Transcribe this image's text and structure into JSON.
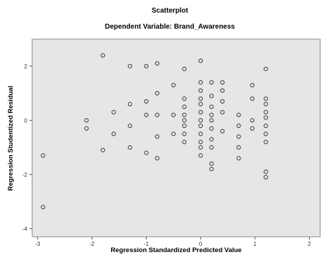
{
  "chart_data": {
    "type": "scatter",
    "title": "Scatterplot",
    "subtitle": "Dependent Variable: Brand_Awareness",
    "xlabel": "Regression Standardized Predicted Value",
    "ylabel": "Regression Studentized Residual",
    "xlim": [
      -3.1,
      2.2
    ],
    "ylim": [
      -4.3,
      3.0
    ],
    "xticks": [
      -3,
      -2,
      -1,
      0,
      1,
      2
    ],
    "yticks": [
      -4,
      -2,
      0,
      2
    ],
    "grid": false,
    "plot_background": "#e6e6e6",
    "marker_color": "#444444",
    "points": [
      {
        "x": -2.9,
        "y": -1.3
      },
      {
        "x": -2.9,
        "y": -3.2
      },
      {
        "x": -2.1,
        "y": 0.0
      },
      {
        "x": -2.1,
        "y": -0.3
      },
      {
        "x": -1.8,
        "y": 2.4
      },
      {
        "x": -1.8,
        "y": -1.1
      },
      {
        "x": -1.6,
        "y": 0.3
      },
      {
        "x": -1.6,
        "y": -0.5
      },
      {
        "x": -1.3,
        "y": 2.0
      },
      {
        "x": -1.3,
        "y": 0.6
      },
      {
        "x": -1.3,
        "y": -0.2
      },
      {
        "x": -1.3,
        "y": -1.0
      },
      {
        "x": -1.0,
        "y": 2.0
      },
      {
        "x": -1.0,
        "y": 0.7
      },
      {
        "x": -1.0,
        "y": 0.2
      },
      {
        "x": -1.0,
        "y": -1.2
      },
      {
        "x": -0.8,
        "y": 2.1
      },
      {
        "x": -0.8,
        "y": 1.0
      },
      {
        "x": -0.8,
        "y": 0.2
      },
      {
        "x": -0.8,
        "y": -0.6
      },
      {
        "x": -0.8,
        "y": -1.4
      },
      {
        "x": -0.5,
        "y": 1.3
      },
      {
        "x": -0.5,
        "y": 0.2
      },
      {
        "x": -0.5,
        "y": -0.5
      },
      {
        "x": -0.3,
        "y": 1.9
      },
      {
        "x": -0.3,
        "y": 0.8
      },
      {
        "x": -0.3,
        "y": 0.5
      },
      {
        "x": -0.3,
        "y": 0.2
      },
      {
        "x": -0.3,
        "y": 0.0
      },
      {
        "x": -0.3,
        "y": -0.2
      },
      {
        "x": -0.3,
        "y": -0.5
      },
      {
        "x": -0.3,
        "y": -0.8
      },
      {
        "x": 0.0,
        "y": 2.2
      },
      {
        "x": 0.0,
        "y": 1.4
      },
      {
        "x": 0.0,
        "y": 1.1
      },
      {
        "x": 0.0,
        "y": 0.8
      },
      {
        "x": 0.0,
        "y": 0.6
      },
      {
        "x": 0.0,
        "y": 0.3
      },
      {
        "x": 0.0,
        "y": 0.0
      },
      {
        "x": 0.0,
        "y": -0.2
      },
      {
        "x": 0.0,
        "y": -0.5
      },
      {
        "x": 0.0,
        "y": -0.8
      },
      {
        "x": 0.0,
        "y": -1.0
      },
      {
        "x": 0.0,
        "y": -1.3
      },
      {
        "x": 0.2,
        "y": 1.4
      },
      {
        "x": 0.2,
        "y": 0.9
      },
      {
        "x": 0.2,
        "y": 0.5
      },
      {
        "x": 0.2,
        "y": 0.2
      },
      {
        "x": 0.2,
        "y": 0.0
      },
      {
        "x": 0.2,
        "y": -0.3
      },
      {
        "x": 0.2,
        "y": -0.7
      },
      {
        "x": 0.2,
        "y": -1.0
      },
      {
        "x": 0.2,
        "y": -1.6
      },
      {
        "x": 0.2,
        "y": -1.8
      },
      {
        "x": 0.4,
        "y": 1.4
      },
      {
        "x": 0.4,
        "y": 1.1
      },
      {
        "x": 0.4,
        "y": 0.7
      },
      {
        "x": 0.4,
        "y": 0.3
      },
      {
        "x": 0.4,
        "y": -0.4
      },
      {
        "x": 0.7,
        "y": 0.2
      },
      {
        "x": 0.7,
        "y": -0.2
      },
      {
        "x": 0.7,
        "y": -0.6
      },
      {
        "x": 0.7,
        "y": -1.0
      },
      {
        "x": 0.7,
        "y": -1.4
      },
      {
        "x": 0.95,
        "y": 1.3
      },
      {
        "x": 0.95,
        "y": 0.8
      },
      {
        "x": 0.95,
        "y": 0.0
      },
      {
        "x": 0.95,
        "y": -0.3
      },
      {
        "x": 1.2,
        "y": 1.9
      },
      {
        "x": 1.2,
        "y": 0.8
      },
      {
        "x": 1.2,
        "y": 0.6
      },
      {
        "x": 1.2,
        "y": 0.3
      },
      {
        "x": 1.2,
        "y": 0.1
      },
      {
        "x": 1.2,
        "y": -0.2
      },
      {
        "x": 1.2,
        "y": -0.5
      },
      {
        "x": 1.2,
        "y": -0.8
      },
      {
        "x": 1.2,
        "y": -1.9
      },
      {
        "x": 1.2,
        "y": -2.1
      }
    ]
  }
}
